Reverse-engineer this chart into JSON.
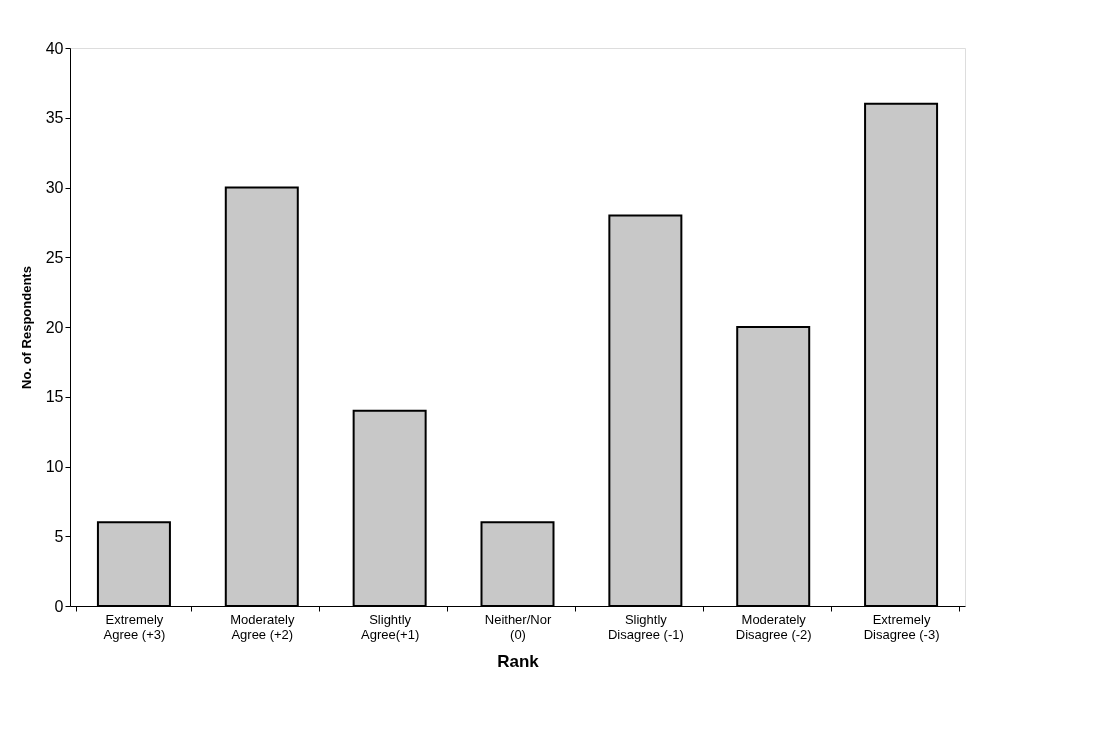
{
  "chart_data": {
    "type": "bar",
    "xlabel": "Rank",
    "ylabel": "No. of Respondents",
    "categories": [
      "Extremely\nAgree (+3)",
      "Moderately\nAgree (+2)",
      "Slightly\nAgree(+1)",
      "Neither/Nor\n(0)",
      "Slightly\nDisagree (-1)",
      "Moderately\nDisagree (-2)",
      "Extremely\nDisagree (-3)"
    ],
    "values": [
      6,
      30,
      14,
      6,
      28,
      20,
      36
    ],
    "color": "#c8c8c8",
    "ylim": [
      0,
      40
    ],
    "yticks": [
      0,
      5,
      10,
      15,
      20,
      25,
      30,
      35,
      40
    ],
    "grid": false
  }
}
